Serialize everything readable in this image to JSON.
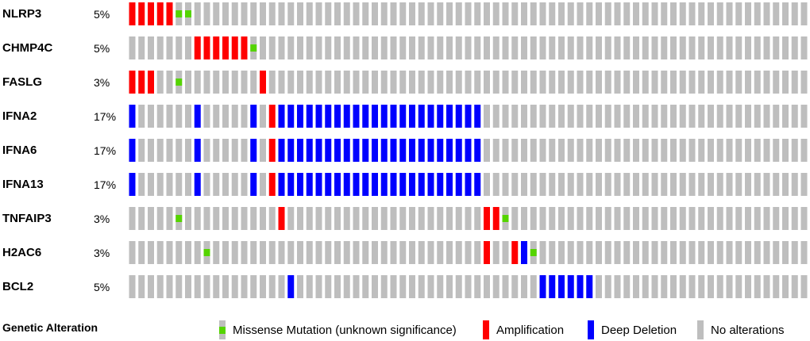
{
  "chart_data": {
    "type": "oncoprint",
    "num_samples": 73,
    "colors": {
      "none": "#bebebe",
      "amp": "#ff0000",
      "del": "#0000ff",
      "mis": "#55d400"
    },
    "genes": [
      {
        "name": "NLRP3",
        "pct": "5%",
        "amp": [
          0,
          1,
          2,
          3,
          4
        ],
        "del": [],
        "mis": [
          5,
          6
        ]
      },
      {
        "name": "CHMP4C",
        "pct": "5%",
        "amp": [
          7,
          8,
          9,
          10,
          11,
          12
        ],
        "del": [],
        "mis": [
          13
        ]
      },
      {
        "name": "FASLG",
        "pct": "3%",
        "amp": [
          0,
          1,
          2,
          14
        ],
        "del": [],
        "mis": [
          5
        ]
      },
      {
        "name": "IFNA2",
        "pct": "17%",
        "amp": [
          15
        ],
        "del": [
          0,
          7,
          13,
          16,
          17,
          18,
          19,
          20,
          21,
          22,
          23,
          24,
          25,
          26,
          27,
          28,
          29,
          30,
          31,
          32,
          33,
          34,
          35,
          36,
          37
        ],
        "mis": []
      },
      {
        "name": "IFNA6",
        "pct": "17%",
        "amp": [
          15
        ],
        "del": [
          0,
          7,
          13,
          16,
          17,
          18,
          19,
          20,
          21,
          22,
          23,
          24,
          25,
          26,
          27,
          28,
          29,
          30,
          31,
          32,
          33,
          34,
          35,
          36,
          37
        ],
        "mis": []
      },
      {
        "name": "IFNA13",
        "pct": "17%",
        "amp": [
          15
        ],
        "del": [
          0,
          7,
          13,
          16,
          17,
          18,
          19,
          20,
          21,
          22,
          23,
          24,
          25,
          26,
          27,
          28,
          29,
          30,
          31,
          32,
          33,
          34,
          35,
          36,
          37
        ],
        "mis": []
      },
      {
        "name": "TNFAIP3",
        "pct": "3%",
        "amp": [
          16,
          38,
          39
        ],
        "del": [],
        "mis": [
          5,
          40
        ]
      },
      {
        "name": "H2AC6",
        "pct": "3%",
        "amp": [
          38,
          41
        ],
        "del": [
          42
        ],
        "mis": [
          8,
          43
        ]
      },
      {
        "name": "BCL2",
        "pct": "5%",
        "amp": [],
        "del": [
          17,
          44,
          45,
          46,
          47,
          48,
          49
        ],
        "mis": []
      }
    ]
  },
  "legend": {
    "title": "Genetic Alteration",
    "items": [
      "Missense Mutation (unknown significance)",
      "Amplification",
      "Deep Deletion",
      "No alterations"
    ]
  }
}
